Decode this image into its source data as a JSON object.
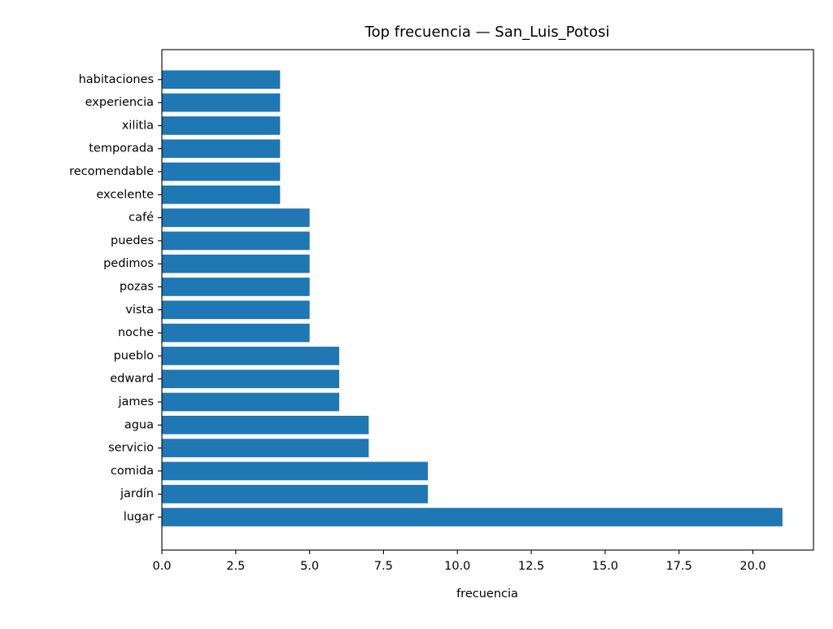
{
  "chart_data": {
    "type": "bar",
    "orientation": "horizontal",
    "title": "Top frecuencia — San_Luis_Potosi",
    "xlabel": "frecuencia",
    "ylabel": "",
    "categories": [
      "lugar",
      "jardín",
      "comida",
      "servicio",
      "agua",
      "james",
      "edward",
      "pueblo",
      "noche",
      "vista",
      "pozas",
      "pedimos",
      "puedes",
      "café",
      "excelente",
      "recomendable",
      "temporada",
      "xilitla",
      "experiencia",
      "habitaciones"
    ],
    "values": [
      21,
      9,
      9,
      7,
      7,
      6,
      6,
      6,
      5,
      5,
      5,
      5,
      5,
      5,
      4,
      4,
      4,
      4,
      4,
      4
    ],
    "xlim": [
      0,
      22.05
    ],
    "xticks": [
      0,
      2.5,
      5,
      7.5,
      10,
      12.5,
      15,
      17.5,
      20
    ],
    "xtick_labels": [
      "0.0",
      "2.5",
      "5.0",
      "7.5",
      "10.0",
      "12.5",
      "15.0",
      "17.5",
      "20.0"
    ],
    "grid": false,
    "legend": "none",
    "bar_color": "#1f77b4"
  }
}
